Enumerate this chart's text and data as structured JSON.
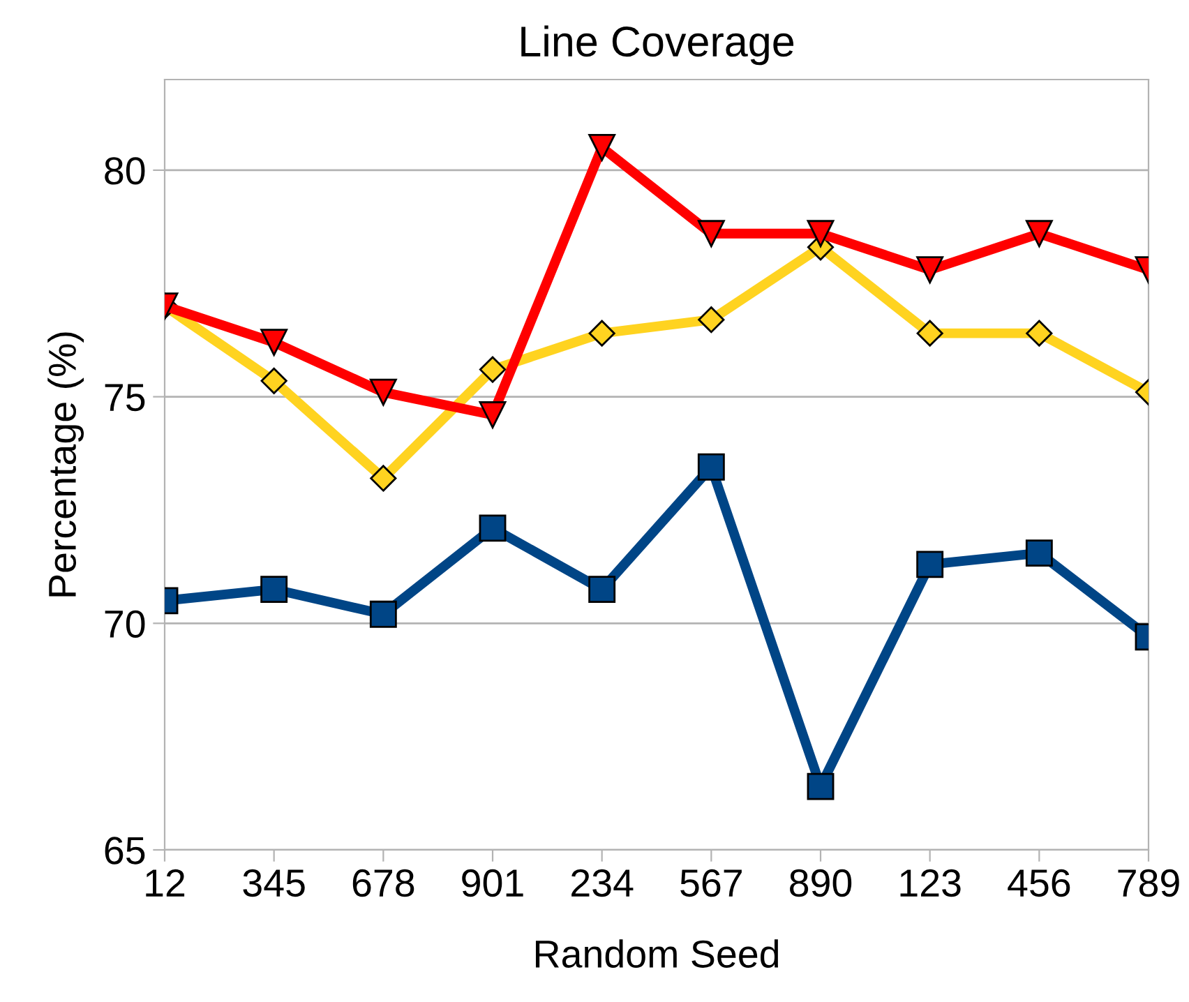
{
  "chart_data": {
    "type": "line",
    "title": "Line Coverage",
    "xlabel": "Random Seed",
    "ylabel": "Percentage (%)",
    "categories": [
      "12",
      "345",
      "678",
      "901",
      "234",
      "567",
      "890",
      "123",
      "456",
      "789"
    ],
    "series": [
      {
        "color": "#004586",
        "marker": "square",
        "values": [
          70.5,
          70.75,
          70.2,
          72.1,
          70.75,
          73.45,
          66.4,
          71.3,
          71.55,
          69.7
        ]
      },
      {
        "color": "#ffd320",
        "marker": "diamond",
        "values": [
          77.0,
          75.35,
          73.2,
          75.6,
          76.4,
          76.7,
          78.3,
          76.4,
          76.4,
          75.1
        ]
      },
      {
        "color": "#ff0000",
        "marker": "triangle",
        "values": [
          77.0,
          76.2,
          75.1,
          74.6,
          80.5,
          78.6,
          78.6,
          77.8,
          78.6,
          77.8
        ]
      }
    ],
    "ylim": [
      65,
      82
    ],
    "yticks": [
      65,
      70,
      75,
      80
    ],
    "grid": "y"
  }
}
